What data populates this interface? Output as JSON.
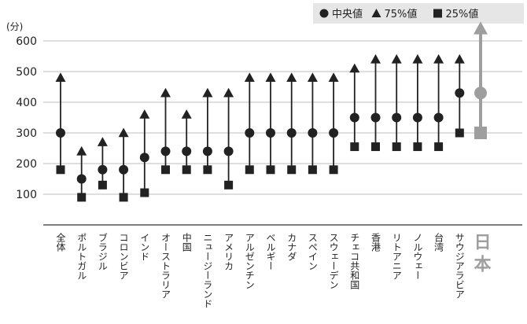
{
  "chart_data": {
    "type": "range-dot",
    "unit_label": "(分)",
    "ylim": [
      0,
      600
    ],
    "yticks": [
      100,
      200,
      300,
      400,
      500,
      600
    ],
    "grid": true,
    "legend_position": "top-right",
    "legend": [
      {
        "name": "中央値",
        "marker": "circle"
      },
      {
        "name": "75%値",
        "marker": "triangle"
      },
      {
        "name": "25%値",
        "marker": "square"
      }
    ],
    "categories": [
      "全体",
      "ポルトガル",
      "ブラジル",
      "コロンビア",
      "インド",
      "オーストラリア",
      "中国",
      "ニュージーランド",
      "アメリカ",
      "アルゼンチン",
      "ベルギー",
      "カナダ",
      "スペイン",
      "スウェーデン",
      "チェコ共和国",
      "香港",
      "リトアニア",
      "ノルウェー",
      "台湾",
      "サウジアラビア",
      "日本"
    ],
    "median": [
      300,
      150,
      180,
      180,
      220,
      240,
      240,
      240,
      240,
      300,
      300,
      300,
      300,
      300,
      350,
      350,
      350,
      350,
      350,
      430,
      430
    ],
    "p75": [
      480,
      240,
      270,
      300,
      360,
      430,
      360,
      430,
      430,
      480,
      480,
      480,
      480,
      480,
      510,
      540,
      540,
      540,
      540,
      540,
      640
    ],
    "p25": [
      180,
      90,
      130,
      90,
      105,
      180,
      180,
      180,
      130,
      180,
      180,
      180,
      180,
      180,
      255,
      255,
      255,
      255,
      255,
      300,
      300
    ],
    "highlight": {
      "category": "日本",
      "color": "#9e9e9e"
    },
    "colors": {
      "marker": "#222222",
      "grid": "#bdbdbd",
      "axis": "#333333"
    }
  }
}
